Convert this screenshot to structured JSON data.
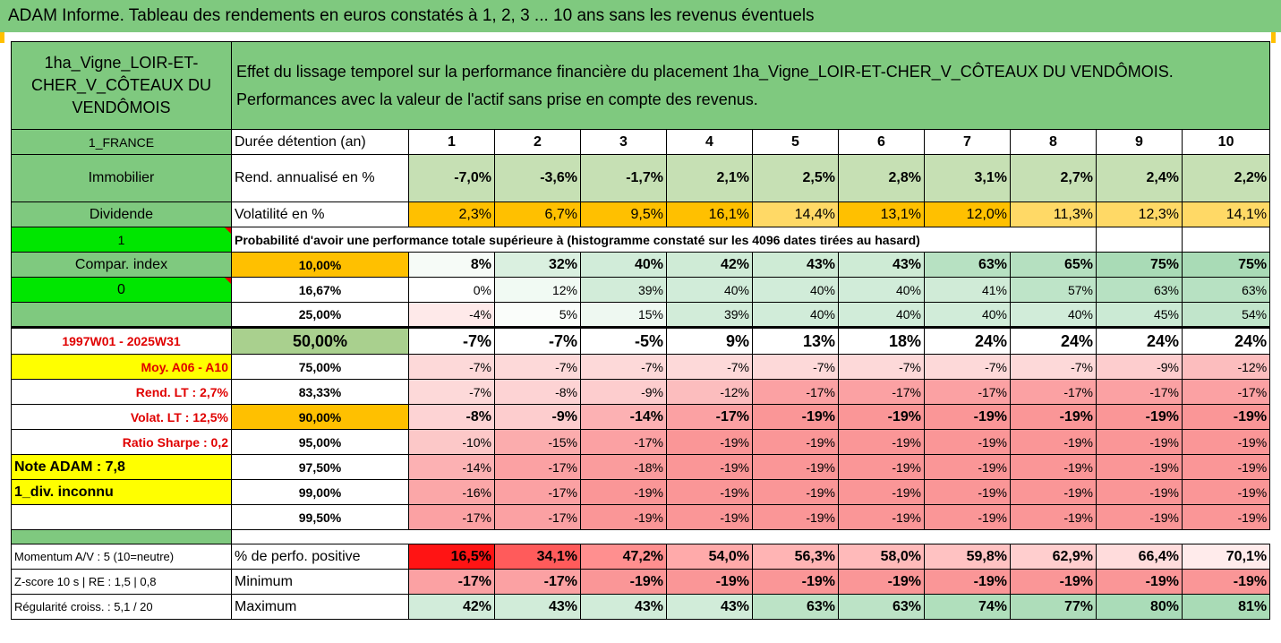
{
  "title": "ADAM Informe. Tableau des rendements en euros constatés à 1, 2, 3 ... 10 ans sans les revenus éventuels",
  "asset_name": "1ha_Vigne_LOIR-ET-CHER_V_CÔTEAUX DU VENDÔMOIS",
  "header_text_1": "Effet du lissage temporel sur la performance financière du placement 1ha_Vigne_LOIR-ET-CHER_V_CÔTEAUX DU VENDÔMOIS.",
  "header_text_2": "Performances avec la valeur de l'actif sans prise en compte des revenus.",
  "left": {
    "country": "1_FRANCE",
    "category": "Immobilier",
    "dividend": "Dividende",
    "val1": "1",
    "compar": "Compar. index",
    "val0": "0",
    "period": "1997W01 - 2025W31",
    "moy": "Moy. A06 - A10",
    "rend_lt": "Rend. LT :    2,7%",
    "volat_lt": "Volat. LT :   12,5%",
    "sharpe": "Ratio Sharpe :    0,2",
    "note": "Note ADAM : 7,8",
    "div": "1_div. inconnu",
    "momentum": "Momentum A/V : 5 (10=neutre)",
    "zscore": "Z-score 10 s  |  RE : 1,5  |  0,8",
    "regularite": "Régularité croiss. : 5,1 / 20"
  },
  "labels": {
    "duree": "Durée détention (an)",
    "rend": "Rend. annualisé en %",
    "volat": "Volatilité en %",
    "proba": "Probabilité d'avoir une performance totale supérieure à (histogramme constaté sur les 4096 dates tirées au hasard)",
    "perf_pos": "% de perfo. positive",
    "minimum": "Minimum",
    "maximum": "Maximum"
  },
  "years": [
    "1",
    "2",
    "3",
    "4",
    "5",
    "6",
    "7",
    "8",
    "9",
    "10"
  ],
  "rend": [
    "-7,0%",
    "-3,6%",
    "-1,7%",
    "2,1%",
    "2,5%",
    "2,8%",
    "3,1%",
    "2,7%",
    "2,4%",
    "2,2%"
  ],
  "volat": [
    "2,3%",
    "6,7%",
    "9,5%",
    "16,1%",
    "14,4%",
    "13,1%",
    "12,0%",
    "11,3%",
    "12,3%",
    "14,1%"
  ],
  "quantiles": [
    {
      "q": "10,00%",
      "v": [
        "8%",
        "32%",
        "40%",
        "42%",
        "43%",
        "43%",
        "63%",
        "65%",
        "75%",
        "75%"
      ]
    },
    {
      "q": "16,67%",
      "v": [
        "0%",
        "12%",
        "39%",
        "40%",
        "40%",
        "40%",
        "41%",
        "57%",
        "63%",
        "63%"
      ]
    },
    {
      "q": "25,00%",
      "v": [
        "-4%",
        "5%",
        "15%",
        "39%",
        "40%",
        "40%",
        "40%",
        "40%",
        "45%",
        "54%"
      ]
    },
    {
      "q": "50,00%",
      "v": [
        "-7%",
        "-7%",
        "-5%",
        "9%",
        "13%",
        "18%",
        "24%",
        "24%",
        "24%",
        "24%"
      ]
    },
    {
      "q": "75,00%",
      "v": [
        "-7%",
        "-7%",
        "-7%",
        "-7%",
        "-7%",
        "-7%",
        "-7%",
        "-7%",
        "-9%",
        "-12%"
      ]
    },
    {
      "q": "83,33%",
      "v": [
        "-7%",
        "-8%",
        "-9%",
        "-12%",
        "-17%",
        "-17%",
        "-17%",
        "-17%",
        "-17%",
        "-17%"
      ]
    },
    {
      "q": "90,00%",
      "v": [
        "-8%",
        "-9%",
        "-14%",
        "-17%",
        "-19%",
        "-19%",
        "-19%",
        "-19%",
        "-19%",
        "-19%"
      ]
    },
    {
      "q": "95,00%",
      "v": [
        "-10%",
        "-15%",
        "-17%",
        "-19%",
        "-19%",
        "-19%",
        "-19%",
        "-19%",
        "-19%",
        "-19%"
      ]
    },
    {
      "q": "97,50%",
      "v": [
        "-14%",
        "-17%",
        "-18%",
        "-19%",
        "-19%",
        "-19%",
        "-19%",
        "-19%",
        "-19%",
        "-19%"
      ]
    },
    {
      "q": "99,00%",
      "v": [
        "-16%",
        "-17%",
        "-19%",
        "-19%",
        "-19%",
        "-19%",
        "-19%",
        "-19%",
        "-19%",
        "-19%"
      ]
    },
    {
      "q": "99,50%",
      "v": [
        "-17%",
        "-17%",
        "-19%",
        "-19%",
        "-19%",
        "-19%",
        "-19%",
        "-19%",
        "-19%",
        "-19%"
      ]
    }
  ],
  "perf_pos": [
    "16,5%",
    "34,1%",
    "47,2%",
    "54,0%",
    "56,3%",
    "58,0%",
    "59,8%",
    "62,9%",
    "66,4%",
    "70,1%"
  ],
  "minimum": [
    "-17%",
    "-17%",
    "-19%",
    "-19%",
    "-19%",
    "-19%",
    "-19%",
    "-19%",
    "-19%",
    "-19%"
  ],
  "maximum": [
    "42%",
    "43%",
    "43%",
    "43%",
    "63%",
    "63%",
    "74%",
    "77%",
    "80%",
    "81%"
  ],
  "colors": {
    "header_green": "#7fc97f",
    "bright_green": "#00e600",
    "highlight_yellow": "#ffff00",
    "highlight_orange": "#ffc000",
    "positive_scale": "#63be7b",
    "negative_scale": "#f8696b",
    "label_red": "#e00000"
  }
}
